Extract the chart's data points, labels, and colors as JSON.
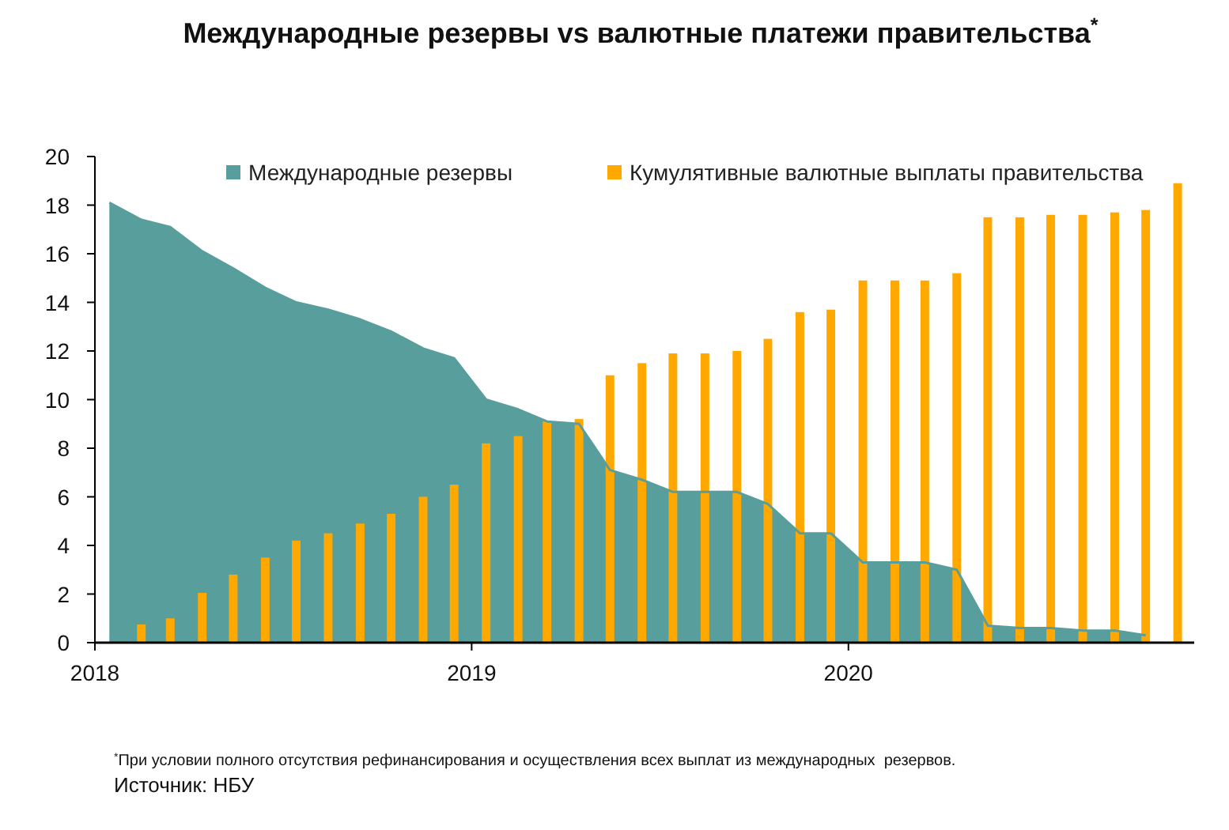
{
  "chart_data": {
    "type": "bar",
    "title": "Международные резервы vs валютные платежи правительства$^{*}$",
    "x": [
      "2018-01-15",
      "2018-02-15",
      "2018-03-15",
      "2018-04-15",
      "2018-05-15",
      "2018-06-15",
      "2018-07-15",
      "2018-08-15",
      "2018-09-15",
      "2018-10-15",
      "2018-11-15",
      "2018-12-15",
      "2019-01-15",
      "2019-02-15",
      "2019-03-15",
      "2019-04-15",
      "2019-05-15",
      "2019-06-15",
      "2019-07-15",
      "2019-08-15",
      "2019-09-15",
      "2019-10-15",
      "2019-11-15",
      "2019-12-15",
      "2020-01-15",
      "2020-02-15",
      "2020-03-15",
      "2020-04-15",
      "2020-05-15",
      "2020-06-15",
      "2020-07-15",
      "2020-08-15",
      "2020-09-15",
      "2020-10-15",
      "2020-11-15"
    ],
    "xlim": [
      "2018-01-01",
      "2020-12-01"
    ],
    "xticks": [
      "2018",
      "2019",
      "2020"
    ],
    "ylim": [
      0,
      20
    ],
    "yticks": [
      0,
      2,
      4,
      6,
      8,
      10,
      12,
      14,
      16,
      18,
      20
    ],
    "series": [
      {
        "name": "Международные резервы",
        "type": "area",
        "color": "#589e9c",
        "values": [
          18.1,
          17.4,
          17.1,
          16.1,
          15.4,
          14.6,
          14.0,
          13.7,
          13.3,
          12.8,
          12.1,
          11.7,
          10.0,
          9.6,
          9.1,
          9.0,
          7.1,
          6.7,
          6.2,
          6.2,
          6.2,
          5.7,
          4.5,
          4.5,
          3.3,
          3.3,
          3.3,
          3.0,
          0.7,
          0.6,
          0.6,
          0.5,
          0.5,
          0.3,
          null
        ]
      },
      {
        "name": "Кумулятивные валютные выплаты правительства",
        "color": "#ffa800",
        "values": [
          null,
          0.75,
          1.0,
          2.05,
          2.8,
          3.5,
          4.2,
          4.5,
          4.9,
          5.3,
          6.0,
          6.5,
          8.2,
          8.5,
          9.1,
          9.2,
          11.0,
          11.5,
          11.9,
          11.9,
          12.0,
          12.5,
          13.6,
          13.7,
          14.9,
          14.9,
          14.9,
          15.2,
          17.5,
          17.5,
          17.6,
          17.6,
          17.7,
          17.8,
          18.9
        ]
      }
    ],
    "legend": "top",
    "annotations": [
      "$^{*}$При условии полного отсутствия рефинансирования и осуществления всех выплат из международных  резервов.",
      "Источник: НБУ"
    ]
  }
}
